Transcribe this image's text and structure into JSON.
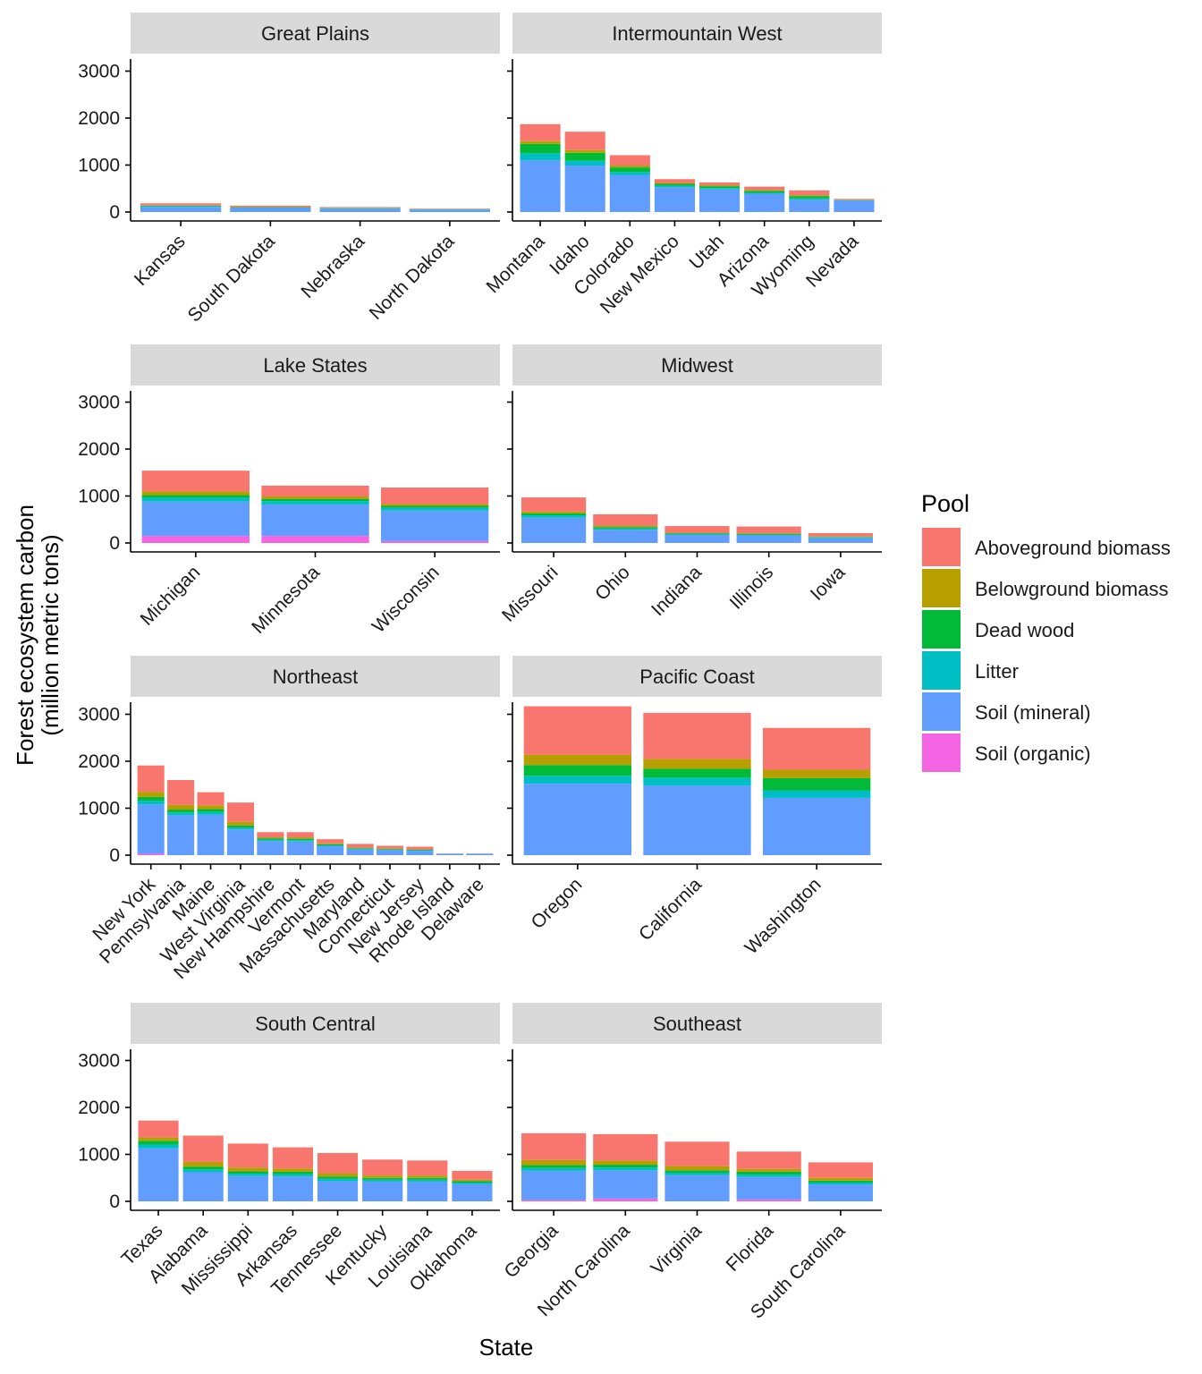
{
  "chart_data": {
    "type": "bar",
    "stacked": true,
    "xlabel": "State",
    "ylabel": "Forest ecosystem carbon\n(million metric tons)",
    "ylim": [
      0,
      3300
    ],
    "yticks": [
      0,
      1000,
      2000,
      3000
    ],
    "legend": {
      "title": "Pool",
      "placement": "right",
      "entries": [
        "Aboveground biomass",
        "Belowground biomass",
        "Dead wood",
        "Litter",
        "Soil (mineral)",
        "Soil (organic)"
      ]
    },
    "colors": {
      "Aboveground biomass": "#F8766D",
      "Belowground biomass": "#B79F00",
      "Dead wood": "#00BA38",
      "Litter": "#00BFC4",
      "Soil (mineral)": "#619CFF",
      "Soil (organic)": "#F564E3"
    },
    "stack_order": [
      "Soil (organic)",
      "Soil (mineral)",
      "Litter",
      "Dead wood",
      "Belowground biomass",
      "Aboveground biomass"
    ],
    "panels": [
      {
        "region": "Great Plains",
        "states": [
          {
            "state": "Kansas",
            "values": {
              "Soil (organic)": 0,
              "Soil (mineral)": 110,
              "Litter": 15,
              "Dead wood": 10,
              "Belowground biomass": 10,
              "Aboveground biomass": 40
            }
          },
          {
            "state": "South Dakota",
            "values": {
              "Soil (organic)": 0,
              "Soil (mineral)": 85,
              "Litter": 10,
              "Dead wood": 8,
              "Belowground biomass": 8,
              "Aboveground biomass": 25
            }
          },
          {
            "state": "Nebraska",
            "values": {
              "Soil (organic)": 0,
              "Soil (mineral)": 70,
              "Litter": 8,
              "Dead wood": 6,
              "Belowground biomass": 5,
              "Aboveground biomass": 16
            }
          },
          {
            "state": "North Dakota",
            "values": {
              "Soil (organic)": 0,
              "Soil (mineral)": 50,
              "Litter": 5,
              "Dead wood": 4,
              "Belowground biomass": 4,
              "Aboveground biomass": 10
            }
          }
        ]
      },
      {
        "region": "Intermountain West",
        "states": [
          {
            "state": "Montana",
            "values": {
              "Soil (organic)": 0,
              "Soil (mineral)": 1100,
              "Litter": 150,
              "Dead wood": 200,
              "Belowground biomass": 60,
              "Aboveground biomass": 360
            }
          },
          {
            "state": "Idaho",
            "values": {
              "Soil (organic)": 0,
              "Soil (mineral)": 990,
              "Litter": 100,
              "Dead wood": 170,
              "Belowground biomass": 60,
              "Aboveground biomass": 390
            }
          },
          {
            "state": "Colorado",
            "values": {
              "Soil (organic)": 0,
              "Soil (mineral)": 790,
              "Litter": 60,
              "Dead wood": 100,
              "Belowground biomass": 40,
              "Aboveground biomass": 220
            }
          },
          {
            "state": "New Mexico",
            "values": {
              "Soil (organic)": 0,
              "Soil (mineral)": 530,
              "Litter": 30,
              "Dead wood": 40,
              "Belowground biomass": 20,
              "Aboveground biomass": 80
            }
          },
          {
            "state": "Utah",
            "values": {
              "Soil (organic)": 0,
              "Soil (mineral)": 480,
              "Litter": 30,
              "Dead wood": 40,
              "Belowground biomass": 20,
              "Aboveground biomass": 60
            }
          },
          {
            "state": "Arizona",
            "values": {
              "Soil (organic)": 0,
              "Soil (mineral)": 390,
              "Litter": 20,
              "Dead wood": 40,
              "Belowground biomass": 20,
              "Aboveground biomass": 70
            }
          },
          {
            "state": "Wyoming",
            "values": {
              "Soil (organic)": 0,
              "Soil (mineral)": 260,
              "Litter": 30,
              "Dead wood": 50,
              "Belowground biomass": 20,
              "Aboveground biomass": 100
            }
          },
          {
            "state": "Nevada",
            "values": {
              "Soil (organic)": 0,
              "Soil (mineral)": 240,
              "Litter": 10,
              "Dead wood": 5,
              "Belowground biomass": 5,
              "Aboveground biomass": 20
            }
          }
        ]
      },
      {
        "region": "Lake States",
        "states": [
          {
            "state": "Michigan",
            "values": {
              "Soil (organic)": 150,
              "Soil (mineral)": 730,
              "Litter": 80,
              "Dead wood": 60,
              "Belowground biomass": 80,
              "Aboveground biomass": 440
            }
          },
          {
            "state": "Minnesota",
            "values": {
              "Soil (organic)": 150,
              "Soil (mineral)": 670,
              "Litter": 70,
              "Dead wood": 50,
              "Belowground biomass": 50,
              "Aboveground biomass": 230
            }
          },
          {
            "state": "Wisconsin",
            "values": {
              "Soil (organic)": 40,
              "Soil (mineral)": 650,
              "Litter": 60,
              "Dead wood": 40,
              "Belowground biomass": 40,
              "Aboveground biomass": 350
            }
          }
        ]
      },
      {
        "region": "Midwest",
        "states": [
          {
            "state": "Missouri",
            "values": {
              "Soil (organic)": 0,
              "Soil (mineral)": 540,
              "Litter": 50,
              "Dead wood": 40,
              "Belowground biomass": 40,
              "Aboveground biomass": 300
            }
          },
          {
            "state": "Ohio",
            "values": {
              "Soil (organic)": 0,
              "Soil (mineral)": 280,
              "Litter": 30,
              "Dead wood": 30,
              "Belowground biomass": 30,
              "Aboveground biomass": 240
            }
          },
          {
            "state": "Indiana",
            "values": {
              "Soil (organic)": 0,
              "Soil (mineral)": 170,
              "Litter": 20,
              "Dead wood": 15,
              "Belowground biomass": 15,
              "Aboveground biomass": 140
            }
          },
          {
            "state": "Illinois",
            "values": {
              "Soil (organic)": 0,
              "Soil (mineral)": 160,
              "Litter": 20,
              "Dead wood": 15,
              "Belowground biomass": 15,
              "Aboveground biomass": 140
            }
          },
          {
            "state": "Iowa",
            "values": {
              "Soil (organic)": 0,
              "Soil (mineral)": 100,
              "Litter": 20,
              "Dead wood": 10,
              "Belowground biomass": 10,
              "Aboveground biomass": 70
            }
          }
        ]
      },
      {
        "region": "Northeast",
        "states": [
          {
            "state": "New York",
            "values": {
              "Soil (organic)": 30,
              "Soil (mineral)": 1050,
              "Litter": 80,
              "Dead wood": 80,
              "Belowground biomass": 110,
              "Aboveground biomass": 560
            }
          },
          {
            "state": "Pennsylvania",
            "values": {
              "Soil (organic)": 0,
              "Soil (mineral)": 850,
              "Litter": 60,
              "Dead wood": 60,
              "Belowground biomass": 100,
              "Aboveground biomass": 530
            }
          },
          {
            "state": "Maine",
            "values": {
              "Soil (organic)": 0,
              "Soil (mineral)": 860,
              "Litter": 60,
              "Dead wood": 60,
              "Belowground biomass": 80,
              "Aboveground biomass": 280
            }
          },
          {
            "state": "West Virginia",
            "values": {
              "Soil (organic)": 0,
              "Soil (mineral)": 550,
              "Litter": 40,
              "Dead wood": 40,
              "Belowground biomass": 80,
              "Aboveground biomass": 410
            }
          },
          {
            "state": "New Hampshire",
            "values": {
              "Soil (organic)": 0,
              "Soil (mineral)": 300,
              "Litter": 30,
              "Dead wood": 30,
              "Belowground biomass": 20,
              "Aboveground biomass": 110
            }
          },
          {
            "state": "Vermont",
            "values": {
              "Soil (organic)": 0,
              "Soil (mineral)": 290,
              "Litter": 30,
              "Dead wood": 30,
              "Belowground biomass": 30,
              "Aboveground biomass": 110
            }
          },
          {
            "state": "Massachusetts",
            "values": {
              "Soil (organic)": 0,
              "Soil (mineral)": 190,
              "Litter": 20,
              "Dead wood": 20,
              "Belowground biomass": 20,
              "Aboveground biomass": 90
            }
          },
          {
            "state": "Maryland",
            "values": {
              "Soil (organic)": 0,
              "Soil (mineral)": 120,
              "Litter": 15,
              "Dead wood": 15,
              "Belowground biomass": 15,
              "Aboveground biomass": 75
            }
          },
          {
            "state": "Connecticut",
            "values": {
              "Soil (organic)": 0,
              "Soil (mineral)": 100,
              "Litter": 15,
              "Dead wood": 15,
              "Belowground biomass": 10,
              "Aboveground biomass": 60
            }
          },
          {
            "state": "New Jersey",
            "values": {
              "Soil (organic)": 0,
              "Soil (mineral)": 90,
              "Litter": 15,
              "Dead wood": 10,
              "Belowground biomass": 10,
              "Aboveground biomass": 55
            }
          },
          {
            "state": "Rhode Island",
            "values": {
              "Soil (organic)": 0,
              "Soil (mineral)": 25,
              "Litter": 3,
              "Dead wood": 3,
              "Belowground biomass": 2,
              "Aboveground biomass": 7
            }
          },
          {
            "state": "Delaware",
            "values": {
              "Soil (organic)": 0,
              "Soil (mineral)": 25,
              "Litter": 3,
              "Dead wood": 3,
              "Belowground biomass": 2,
              "Aboveground biomass": 7
            }
          }
        ]
      },
      {
        "region": "Pacific Coast",
        "states": [
          {
            "state": "Oregon",
            "values": {
              "Soil (organic)": 0,
              "Soil (mineral)": 1520,
              "Litter": 170,
              "Dead wood": 230,
              "Belowground biomass": 220,
              "Aboveground biomass": 1030
            }
          },
          {
            "state": "California",
            "values": {
              "Soil (organic)": 0,
              "Soil (mineral)": 1480,
              "Litter": 170,
              "Dead wood": 190,
              "Belowground biomass": 210,
              "Aboveground biomass": 980
            }
          },
          {
            "state": "Washington",
            "values": {
              "Soil (organic)": 0,
              "Soil (mineral)": 1220,
              "Litter": 160,
              "Dead wood": 260,
              "Belowground biomass": 180,
              "Aboveground biomass": 890
            }
          }
        ]
      },
      {
        "region": "South Central",
        "states": [
          {
            "state": "Texas",
            "values": {
              "Soil (organic)": 0,
              "Soil (mineral)": 1130,
              "Litter": 80,
              "Dead wood": 80,
              "Belowground biomass": 70,
              "Aboveground biomass": 360
            }
          },
          {
            "state": "Alabama",
            "values": {
              "Soil (organic)": 0,
              "Soil (mineral)": 620,
              "Litter": 60,
              "Dead wood": 60,
              "Belowground biomass": 100,
              "Aboveground biomass": 560
            }
          },
          {
            "state": "Mississippi",
            "values": {
              "Soil (organic)": 0,
              "Soil (mineral)": 540,
              "Litter": 50,
              "Dead wood": 50,
              "Belowground biomass": 80,
              "Aboveground biomass": 510
            }
          },
          {
            "state": "Arkansas",
            "values": {
              "Soil (organic)": 0,
              "Soil (mineral)": 530,
              "Litter": 50,
              "Dead wood": 50,
              "Belowground biomass": 70,
              "Aboveground biomass": 450
            }
          },
          {
            "state": "Tennessee",
            "values": {
              "Soil (organic)": 0,
              "Soil (mineral)": 430,
              "Litter": 50,
              "Dead wood": 50,
              "Belowground biomass": 70,
              "Aboveground biomass": 430
            }
          },
          {
            "state": "Kentucky",
            "values": {
              "Soil (organic)": 0,
              "Soil (mineral)": 420,
              "Litter": 40,
              "Dead wood": 40,
              "Belowground biomass": 50,
              "Aboveground biomass": 340
            }
          },
          {
            "state": "Louisiana",
            "values": {
              "Soil (organic)": 0,
              "Soil (mineral)": 420,
              "Litter": 40,
              "Dead wood": 40,
              "Belowground biomass": 50,
              "Aboveground biomass": 320
            }
          },
          {
            "state": "Oklahoma",
            "values": {
              "Soil (organic)": 0,
              "Soil (mineral)": 370,
              "Litter": 30,
              "Dead wood": 30,
              "Belowground biomass": 30,
              "Aboveground biomass": 190
            }
          }
        ]
      },
      {
        "region": "Southeast",
        "states": [
          {
            "state": "Georgia",
            "values": {
              "Soil (organic)": 30,
              "Soil (mineral)": 620,
              "Litter": 60,
              "Dead wood": 60,
              "Belowground biomass": 110,
              "Aboveground biomass": 570
            }
          },
          {
            "state": "North Carolina",
            "values": {
              "Soil (organic)": 60,
              "Soil (mineral)": 600,
              "Litter": 60,
              "Dead wood": 60,
              "Belowground biomass": 90,
              "Aboveground biomass": 560
            }
          },
          {
            "state": "Virginia",
            "values": {
              "Soil (organic)": 0,
              "Soil (mineral)": 560,
              "Litter": 50,
              "Dead wood": 50,
              "Belowground biomass": 90,
              "Aboveground biomass": 520
            }
          },
          {
            "state": "Florida",
            "values": {
              "Soil (organic)": 40,
              "Soil (mineral)": 480,
              "Litter": 50,
              "Dead wood": 60,
              "Belowground biomass": 60,
              "Aboveground biomass": 370
            }
          },
          {
            "state": "South Carolina",
            "values": {
              "Soil (organic)": 0,
              "Soil (mineral)": 360,
              "Litter": 40,
              "Dead wood": 40,
              "Belowground biomass": 60,
              "Aboveground biomass": 330
            }
          }
        ]
      }
    ]
  }
}
